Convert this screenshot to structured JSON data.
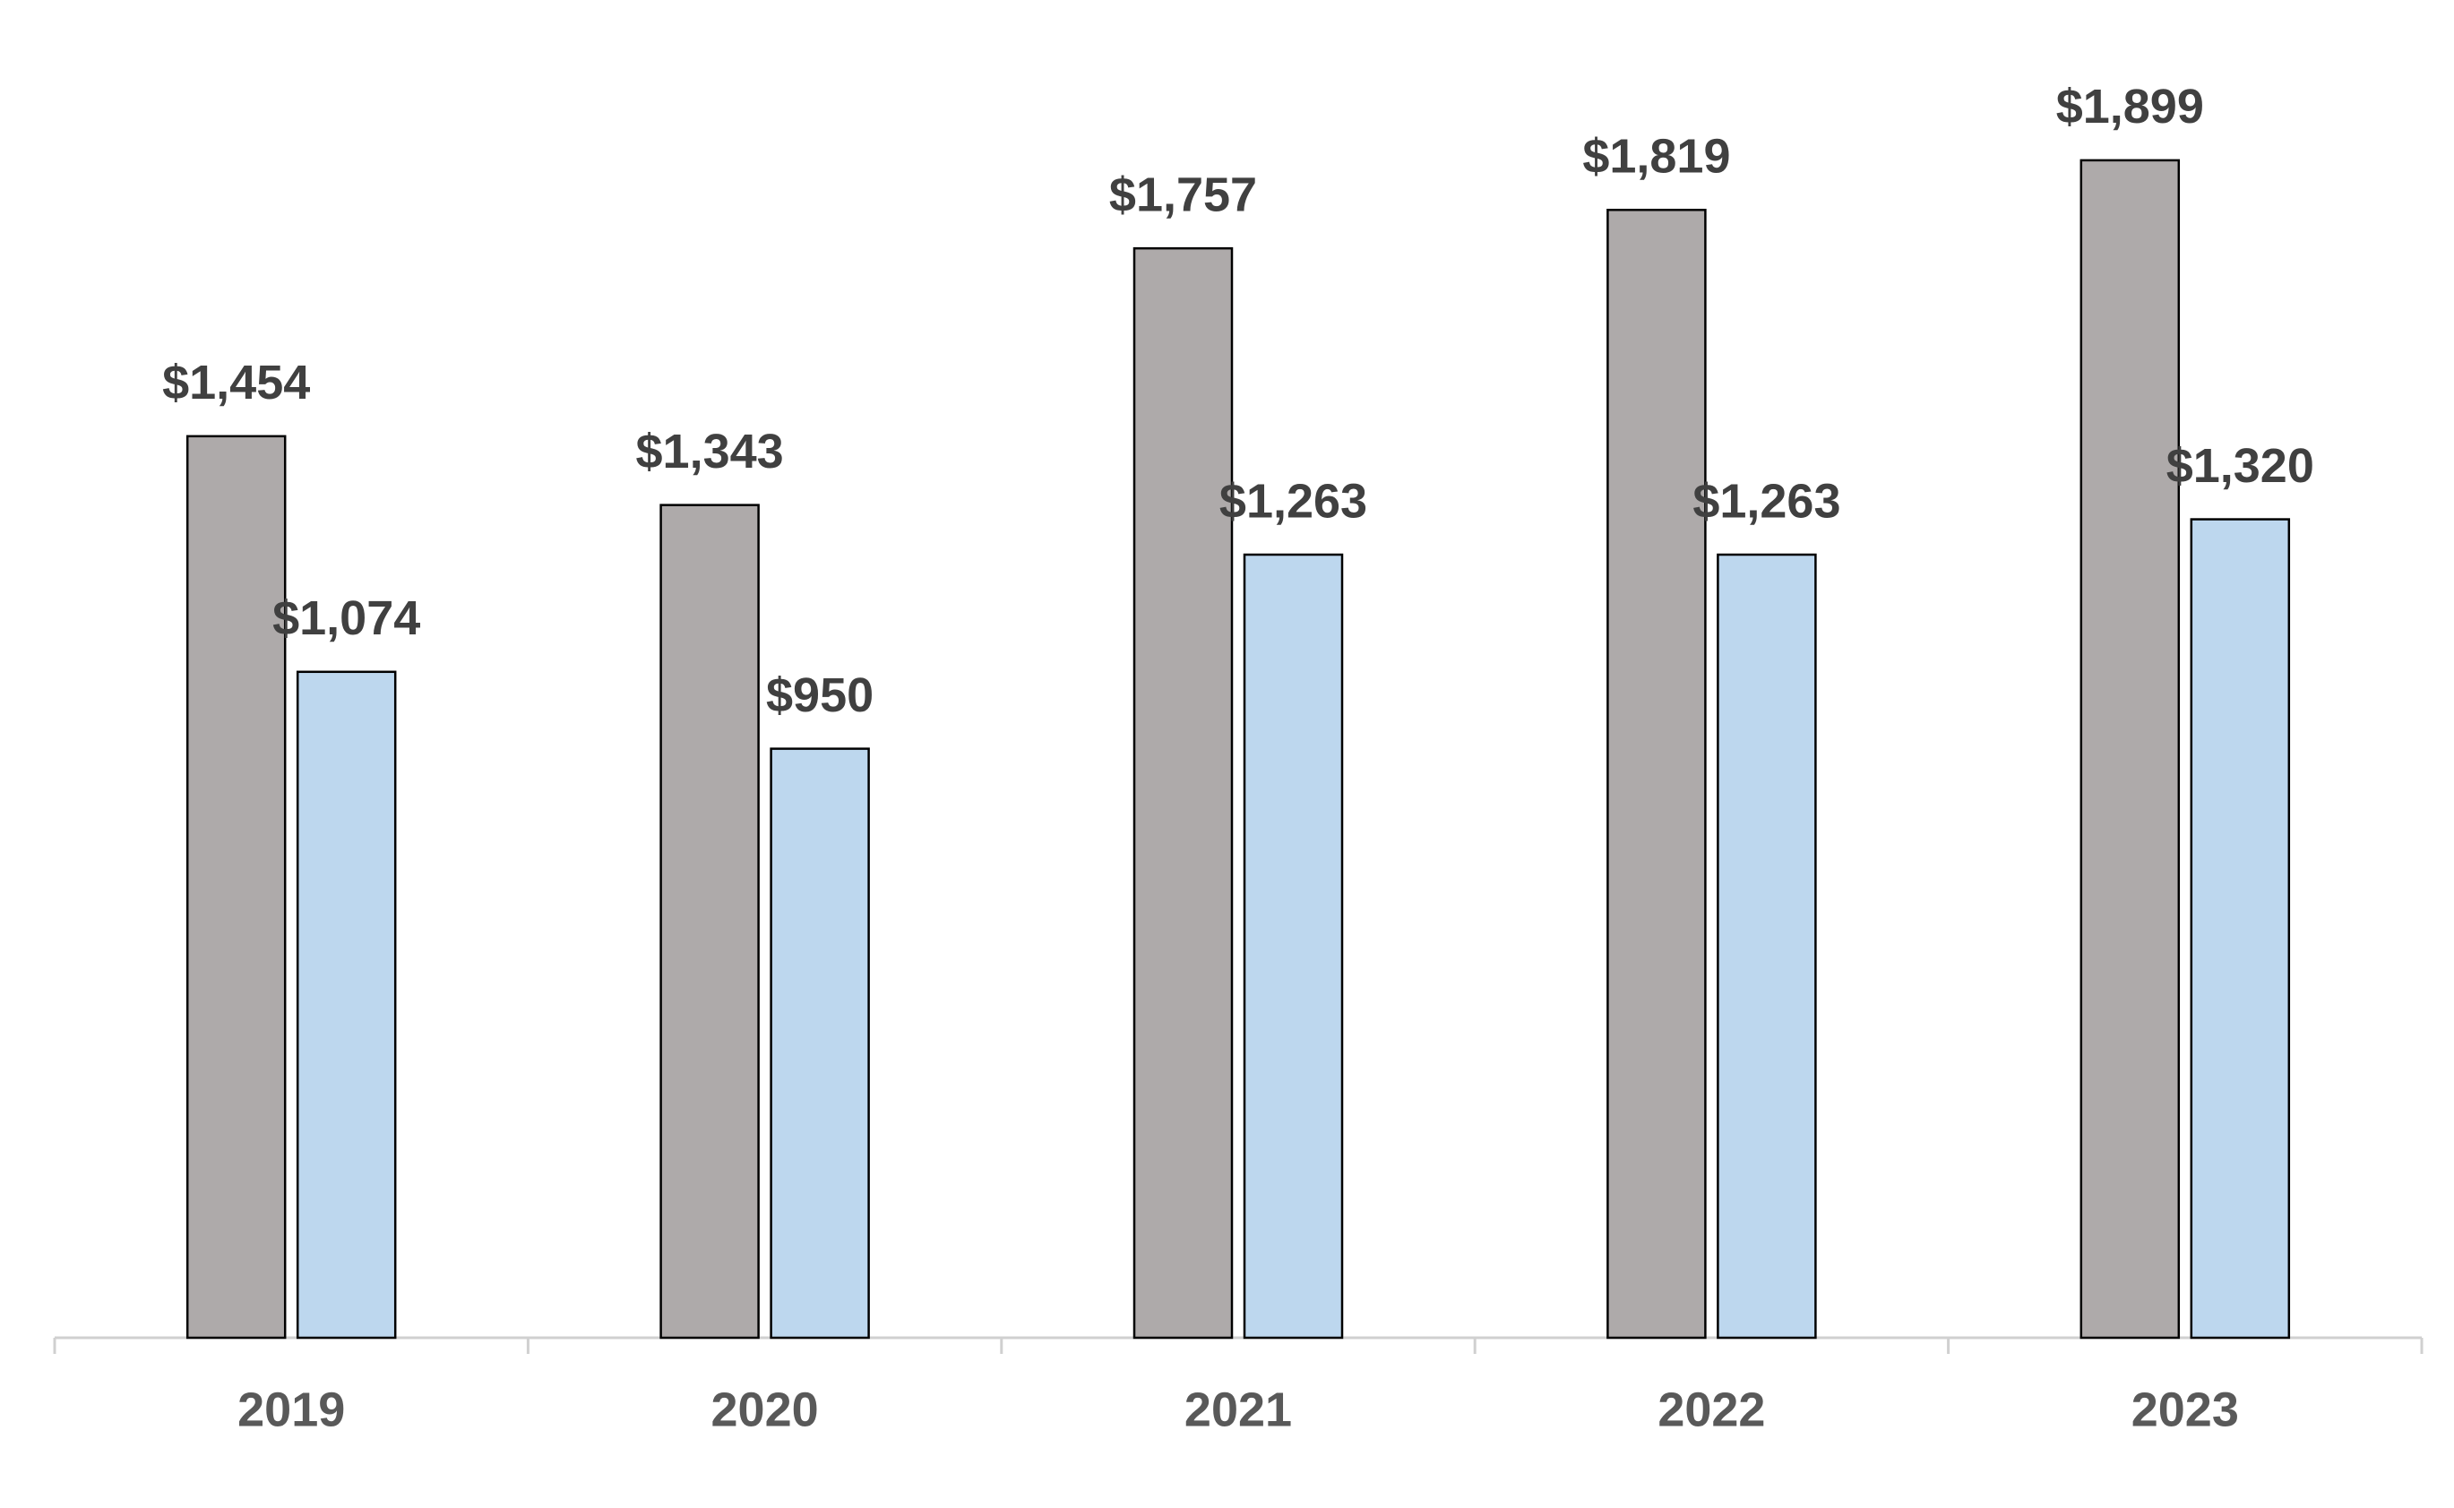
{
  "chart_data": {
    "type": "bar",
    "categories": [
      "2019",
      "2020",
      "2021",
      "2022",
      "2023"
    ],
    "series": [
      {
        "color": "#aeaaaa",
        "values": [
          1454,
          1343,
          1757,
          1819,
          1899
        ],
        "value_labels": [
          "$1,454",
          "$1,343",
          "$1,757",
          "$1,819",
          "$1,899"
        ]
      },
      {
        "color": "#bdd7ee",
        "values": [
          1074,
          950,
          1263,
          1263,
          1320
        ],
        "value_labels": [
          "$1,074",
          "$950",
          "$1,263",
          "$1,263",
          "$1,320"
        ]
      }
    ]
  }
}
